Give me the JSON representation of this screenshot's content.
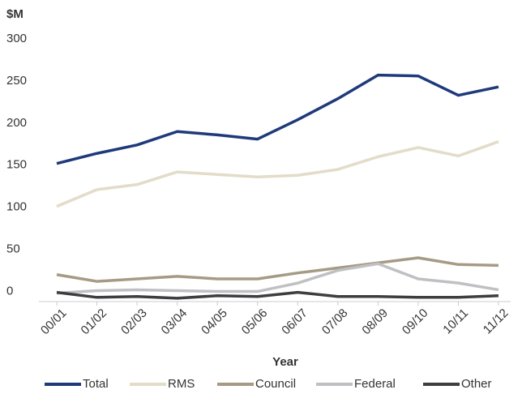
{
  "chart_data": {
    "type": "line",
    "y_unit_label": "$M",
    "x_label": "Year",
    "categories": [
      "00/01",
      "01/02",
      "02/03",
      "03/04",
      "04/05",
      "05/06",
      "06/07",
      "07/08",
      "08/09",
      "09/10",
      "10/11",
      "11/12"
    ],
    "series": [
      {
        "name": "Total",
        "color": "#1f3a7a",
        "values": [
          152,
          164,
          174,
          190,
          186,
          181,
          204,
          229,
          257,
          256,
          233,
          243
        ]
      },
      {
        "name": "RMS",
        "color": "#e2dcc8",
        "values": [
          101,
          121,
          127,
          142,
          139,
          136,
          138,
          145,
          160,
          171,
          161,
          178
        ]
      },
      {
        "name": "Council",
        "color": "#a59b85",
        "values": [
          20,
          12,
          15,
          18,
          15,
          15,
          22,
          28,
          34,
          40,
          32,
          31
        ]
      },
      {
        "name": "Federal",
        "color": "#bfc0c3",
        "values": [
          -2,
          1,
          2,
          1,
          0,
          0,
          10,
          25,
          33,
          15,
          10,
          2
        ]
      },
      {
        "name": "Other",
        "color": "#3e3e40",
        "values": [
          -1,
          -7,
          -6,
          -8,
          -5,
          -6,
          -1,
          -6,
          -6,
          -7,
          -7,
          -5
        ]
      }
    ],
    "ylim": [
      -12,
      300
    ],
    "yticks": [
      0,
      50,
      100,
      150,
      200,
      250,
      300
    ],
    "grid": false,
    "legend": "bottom"
  }
}
